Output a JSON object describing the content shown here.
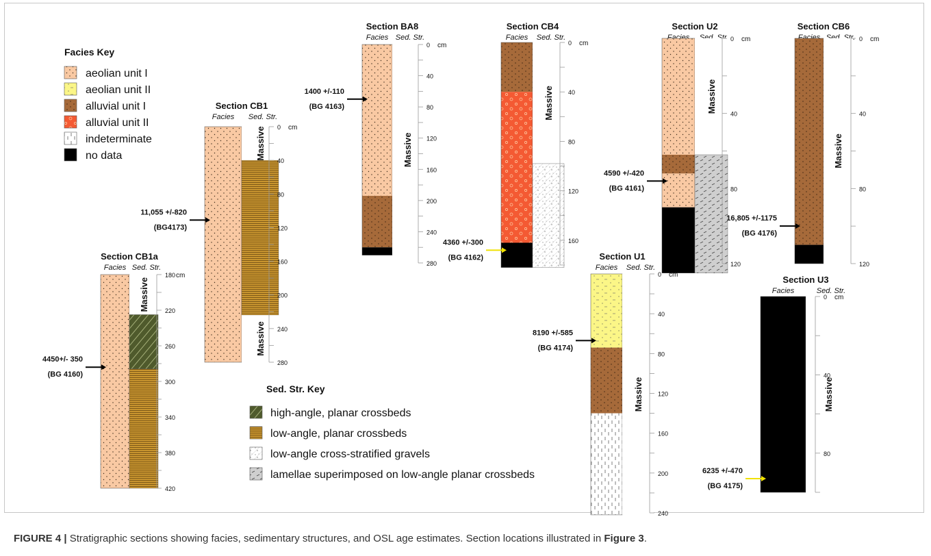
{
  "header_labels": {
    "facies": "Facies",
    "sed_str": "Sed. Str.",
    "unit": "cm"
  },
  "facies_key": {
    "title": "Facies Key",
    "items": [
      {
        "label": "aeolian unit I",
        "pattern": "aeolianI"
      },
      {
        "label": "aeolian unit II",
        "pattern": "aeolianII"
      },
      {
        "label": "alluvial unit I",
        "pattern": "alluvialI"
      },
      {
        "label": "alluvial unit II",
        "pattern": "alluvialII"
      },
      {
        "label": "indeterminate",
        "pattern": "indet"
      },
      {
        "label": "no data",
        "pattern": "nodata"
      }
    ]
  },
  "sed_key": {
    "title": "Sed. Str. Key",
    "items": [
      {
        "label": "high-angle, planar crossbeds",
        "pattern": "highangle"
      },
      {
        "label": "low-angle, planar crossbeds",
        "pattern": "lowangle"
      },
      {
        "label": "low-angle cross-stratified gravels",
        "pattern": "gravels"
      },
      {
        "label": "lamellae superimposed on low-angle planar crossbeds",
        "pattern": "lamellae"
      }
    ]
  },
  "colors": {
    "aeolianI": "#f9c9a3",
    "aeolianII": "#fbf687",
    "alluvialI": "#a66a3a",
    "alluvialII": "#f45a33",
    "nodata": "#000000",
    "lowangle": "#c9952f",
    "highangle": "#4f5a2c",
    "arrow_black": "#000000",
    "arrow_yellow": "#f0e100"
  },
  "sections": [
    {
      "id": "cb1a",
      "name": "Section CB1a",
      "top": 180,
      "bottom": 420,
      "ticks": [
        {
          "v": 180,
          "t": "180"
        },
        {
          "v": 220,
          "t": "220"
        },
        {
          "v": 260,
          "t": "260"
        },
        {
          "v": 300,
          "t": "300"
        },
        {
          "v": 340,
          "t": "340"
        },
        {
          "v": 380,
          "t": "380"
        },
        {
          "v": 420,
          "t": "420"
        }
      ],
      "show_unit": true,
      "facies": [
        {
          "from": 180,
          "to": 420,
          "pattern": "aeolianI"
        }
      ],
      "sed": [
        {
          "from": 180,
          "to": 225,
          "pattern": "none",
          "label": "Massive"
        },
        {
          "from": 225,
          "to": 286,
          "pattern": "highangle"
        },
        {
          "from": 286,
          "to": 420,
          "pattern": "lowangle"
        }
      ],
      "ages": [
        {
          "depth": 284,
          "line1": "4450+/- 350",
          "line2": "(BG 4160)",
          "color": "black"
        }
      ]
    },
    {
      "id": "cb1",
      "name": "Section CB1",
      "top": 0,
      "bottom": 280,
      "ticks": [
        {
          "v": 0,
          "t": "0"
        },
        {
          "v": 40,
          "t": "40"
        },
        {
          "v": 80,
          "t": "80"
        },
        {
          "v": 120,
          "t": "120"
        },
        {
          "v": 160,
          "t": "160"
        },
        {
          "v": 200,
          "t": "200"
        },
        {
          "v": 240,
          "t": "240"
        },
        {
          "v": 280,
          "t": "280"
        }
      ],
      "show_unit": true,
      "facies": [
        {
          "from": 0,
          "to": 280,
          "pattern": "aeolianI"
        }
      ],
      "sed": [
        {
          "from": 0,
          "to": 40,
          "pattern": "none",
          "label": "Massive"
        },
        {
          "from": 40,
          "to": 224,
          "pattern": "lowangle"
        },
        {
          "from": 224,
          "to": 280,
          "pattern": "none",
          "label": "Massive"
        }
      ],
      "ages": [
        {
          "depth": 111,
          "line1": "11,055 +/-820",
          "line2": "(BG4173)",
          "color": "black"
        }
      ]
    },
    {
      "id": "ba8",
      "name": "Section BA8",
      "top": 0,
      "bottom": 280,
      "ticks": [
        {
          "v": 0,
          "t": "0"
        },
        {
          "v": 40,
          "t": "40"
        },
        {
          "v": 80,
          "t": "80"
        },
        {
          "v": 120,
          "t": "120"
        },
        {
          "v": 160,
          "t": "160"
        },
        {
          "v": 200,
          "t": "200"
        },
        {
          "v": 240,
          "t": "240"
        },
        {
          "v": 280,
          "t": "280"
        }
      ],
      "show_unit": true,
      "facies": [
        {
          "from": 0,
          "to": 194,
          "pattern": "aeolianI"
        },
        {
          "from": 194,
          "to": 260,
          "pattern": "alluvialI"
        },
        {
          "from": 260,
          "to": 270,
          "pattern": "nodata"
        }
      ],
      "sed": [
        {
          "from": 0,
          "to": 270,
          "pattern": "none",
          "label": "Massive"
        }
      ],
      "ages": [
        {
          "depth": 70,
          "line1": "1400 +/-110",
          "line2": "(BG 4163)",
          "color": "black"
        }
      ]
    },
    {
      "id": "cb4",
      "name": "Section CB4",
      "top": 0,
      "bottom": 180,
      "ticks": [
        {
          "v": 0,
          "t": "0"
        },
        {
          "v": 40,
          "t": "40"
        },
        {
          "v": 80,
          "t": "80"
        },
        {
          "v": 120,
          "t": "120"
        },
        {
          "v": 160,
          "t": "160"
        }
      ],
      "show_unit": true,
      "facies": [
        {
          "from": 0,
          "to": 40,
          "pattern": "alluvialI"
        },
        {
          "from": 40,
          "to": 162,
          "pattern": "alluvialII"
        },
        {
          "from": 162,
          "to": 182,
          "pattern": "nodata"
        }
      ],
      "sed": [
        {
          "from": 0,
          "to": 98,
          "pattern": "none",
          "label": "Massive"
        },
        {
          "from": 98,
          "to": 182,
          "pattern": "gravels"
        }
      ],
      "ages": [
        {
          "depth": 168,
          "line1": "4360 +/-300",
          "line2": "(BG 4162)",
          "color": "yellow"
        }
      ]
    },
    {
      "id": "u2",
      "name": "Section U2",
      "top": 0,
      "bottom": 120,
      "ticks": [
        {
          "v": 0,
          "t": "0"
        },
        {
          "v": 40,
          "t": "40"
        },
        {
          "v": 80,
          "t": "80"
        },
        {
          "v": 120,
          "t": "120"
        }
      ],
      "show_unit": true,
      "facies": [
        {
          "from": 0,
          "to": 62,
          "pattern": "aeolianI"
        },
        {
          "from": 62,
          "to": 72,
          "pattern": "alluvialI"
        },
        {
          "from": 72,
          "to": 90,
          "pattern": "aeolianI"
        },
        {
          "from": 90,
          "to": 125,
          "pattern": "nodata"
        }
      ],
      "sed": [
        {
          "from": 0,
          "to": 62,
          "pattern": "none",
          "label": "Massive"
        },
        {
          "from": 62,
          "to": 125,
          "pattern": "lamellae"
        }
      ],
      "ages": [
        {
          "depth": 76,
          "line1": "4590 +/-420",
          "line2": "(BG 4161)",
          "color": "black"
        }
      ]
    },
    {
      "id": "cb6",
      "name": "Section CB6",
      "top": 0,
      "bottom": 120,
      "ticks": [
        {
          "v": 0,
          "t": "0"
        },
        {
          "v": 40,
          "t": "40"
        },
        {
          "v": 80,
          "t": "80"
        },
        {
          "v": 120,
          "t": "120"
        }
      ],
      "show_unit": true,
      "facies": [
        {
          "from": 0,
          "to": 110,
          "pattern": "alluvialI"
        },
        {
          "from": 110,
          "to": 120,
          "pattern": "nodata"
        }
      ],
      "sed": [
        {
          "from": 0,
          "to": 120,
          "pattern": "none",
          "label": "Massive"
        }
      ],
      "ages": [
        {
          "depth": 100,
          "line1": "16,805 +/-1175",
          "line2": "(BG 4176)",
          "color": "black"
        }
      ]
    },
    {
      "id": "u1",
      "name": "Section U1",
      "top": 0,
      "bottom": 240,
      "ticks": [
        {
          "v": 0,
          "t": "0"
        },
        {
          "v": 40,
          "t": "40"
        },
        {
          "v": 80,
          "t": "80"
        },
        {
          "v": 120,
          "t": "120"
        },
        {
          "v": 160,
          "t": "160"
        },
        {
          "v": 200,
          "t": "200"
        },
        {
          "v": 240,
          "t": "240"
        }
      ],
      "show_unit": true,
      "facies": [
        {
          "from": 0,
          "to": 74,
          "pattern": "aeolianII"
        },
        {
          "from": 74,
          "to": 140,
          "pattern": "alluvialI"
        },
        {
          "from": 140,
          "to": 242,
          "pattern": "indet"
        }
      ],
      "sed": [
        {
          "from": 0,
          "to": 242,
          "pattern": "none",
          "label": "Massive"
        }
      ],
      "ages": [
        {
          "depth": 67,
          "line1": "8190 +/-585",
          "line2": "(BG 4174)",
          "color": "black"
        }
      ]
    },
    {
      "id": "u3",
      "name": "Section U3",
      "top": 0,
      "bottom": 100,
      "ticks": [
        {
          "v": 0,
          "t": "0"
        },
        {
          "v": 40,
          "t": "40"
        },
        {
          "v": 80,
          "t": "80"
        }
      ],
      "show_unit": true,
      "facies": [
        {
          "from": 0,
          "to": 100,
          "pattern": "nodata"
        }
      ],
      "sed": [
        {
          "from": 0,
          "to": 100,
          "pattern": "none",
          "label": "Massive"
        }
      ],
      "ages": [
        {
          "depth": 93,
          "line1": "6235 +/-470",
          "line2": "(BG 4175)",
          "color": "yellow"
        }
      ]
    }
  ],
  "caption": {
    "label": "FIGURE 4 |",
    "text": " Stratigraphic sections showing facies, sedimentary structures, and OSL age estimates. Section locations illustrated in ",
    "ref": "Figure 3",
    "end": "."
  }
}
